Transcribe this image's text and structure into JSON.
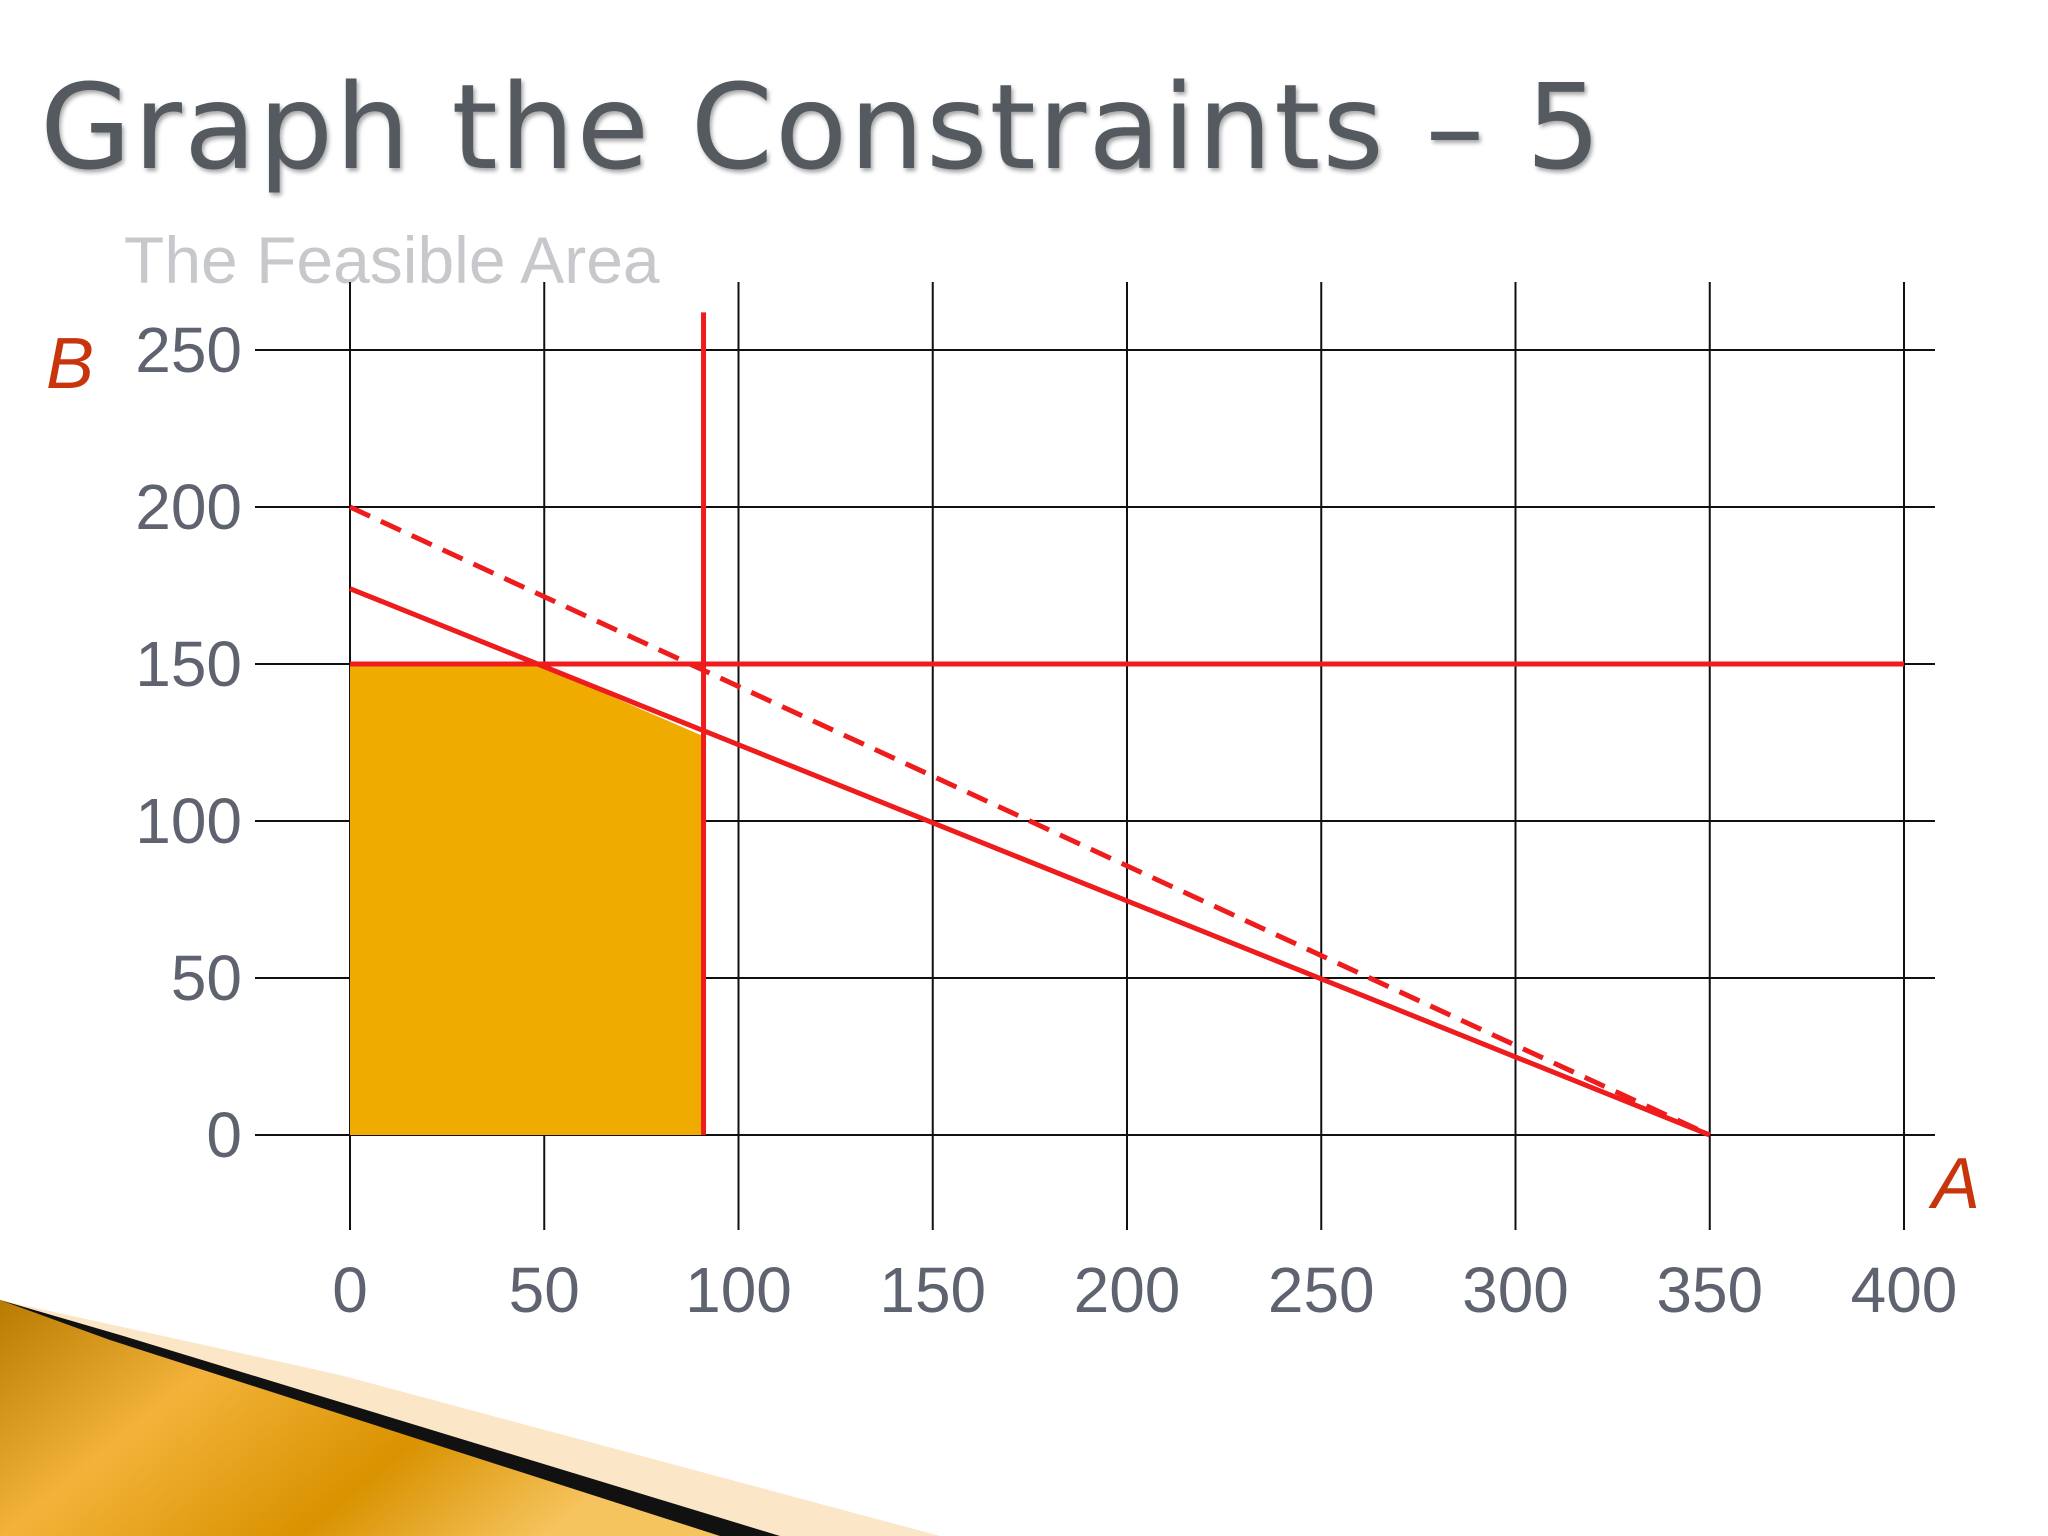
{
  "slide": {
    "title": "Graph the Constraints – 5"
  },
  "colors": {
    "constraint_line": "#ee1c1c",
    "feasible_fill": "#f0ab00",
    "grid": "#111111",
    "tick_text": "#5f6370",
    "axis_name": "#c8340c"
  },
  "chart_data": {
    "type": "line",
    "subtitle": "The Feasible Area",
    "xlabel": "A",
    "ylabel": "B",
    "xlim": [
      0,
      400
    ],
    "ylim": [
      0,
      250
    ],
    "x_ticks": [
      "0",
      "50",
      "100",
      "150",
      "200",
      "250",
      "300",
      "350",
      "400"
    ],
    "y_ticks": [
      "0",
      "50",
      "100",
      "150",
      "200",
      "250"
    ],
    "grid": true,
    "series": [
      {
        "style": "solid",
        "points": [
          [
            0,
            174
          ],
          [
            350,
            0
          ]
        ]
      },
      {
        "style": "dashed",
        "points": [
          [
            0,
            200
          ],
          [
            350,
            0
          ]
        ]
      },
      {
        "style": "solid",
        "points": [
          [
            0,
            150
          ],
          [
            400,
            150
          ]
        ]
      },
      {
        "style": "solid",
        "points": [
          [
            91,
            0
          ],
          [
            91,
            262
          ]
        ]
      }
    ],
    "feasible_region": [
      [
        0,
        0
      ],
      [
        0,
        150
      ],
      [
        48,
        150
      ],
      [
        91,
        127
      ],
      [
        91,
        0
      ]
    ]
  }
}
